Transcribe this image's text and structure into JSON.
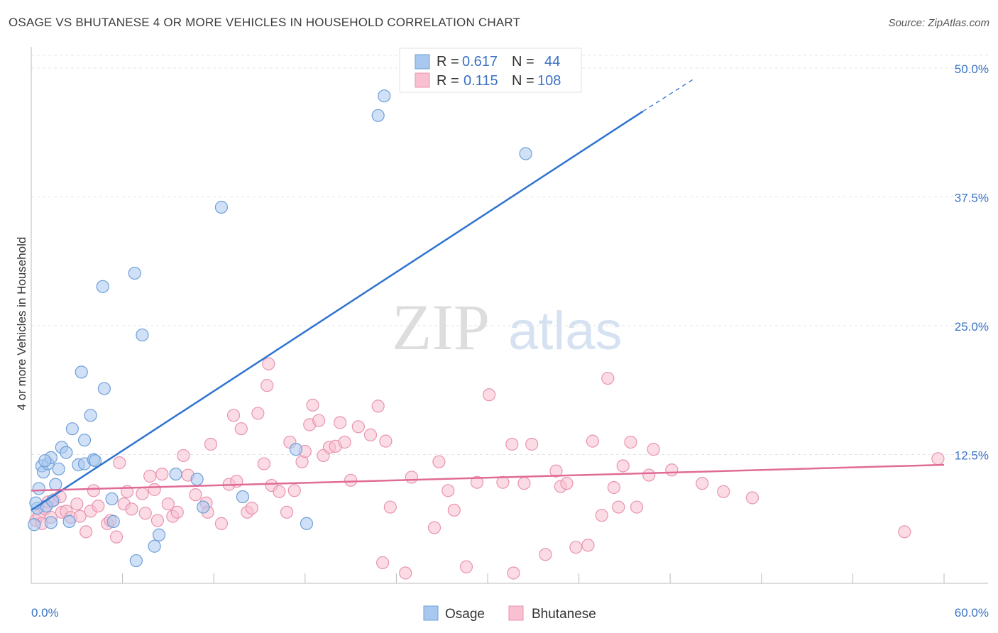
{
  "title": "OSAGE VS BHUTANESE 4 OR MORE VEHICLES IN HOUSEHOLD CORRELATION CHART",
  "source": "Source: ZipAtlas.com",
  "watermark": {
    "zip": "ZIP",
    "atlas": "atlas"
  },
  "legend": {
    "r_label": "R =",
    "n_label": "N =",
    "rows": [
      {
        "name": "Osage",
        "r": "0.617",
        "n": "44",
        "color": "#a9c8f0",
        "stroke": "#6e9fd8"
      },
      {
        "name": "Bhutanese",
        "r": "0.115",
        "n": "108",
        "color": "#f8c0d0",
        "stroke": "#e993b0"
      }
    ]
  },
  "chart_data": {
    "type": "scatter",
    "title": "OSAGE VS BHUTANESE 4 OR MORE VEHICLES IN HOUSEHOLD CORRELATION CHART",
    "xlabel": "",
    "ylabel": "4 or more Vehicles in Household",
    "xlim": [
      0,
      60
    ],
    "ylim": [
      0,
      50
    ],
    "x_tick_labels": [
      "0.0%",
      "60.0%"
    ],
    "y_ticks": [
      12.5,
      25.0,
      37.5,
      50.0
    ],
    "y_tick_labels": [
      "12.5%",
      "25.0%",
      "37.5%",
      "50.0%"
    ],
    "grid": true,
    "legend_position": "top-center",
    "series": [
      {
        "name": "Osage",
        "color": "#a9c8f0",
        "stroke": "#6e9fd8",
        "line_color": "#2f74d0",
        "trend": {
          "x0": 0.0,
          "y0": 7.1,
          "x1": 40.2,
          "y1": 45.8,
          "dash_to_x": 43.5,
          "dash_to_y": 48.9
        },
        "points": [
          [
            0.2,
            5.7
          ],
          [
            0.4,
            7.3
          ],
          [
            0.5,
            9.2
          ],
          [
            0.7,
            11.4
          ],
          [
            0.8,
            10.8
          ],
          [
            1.0,
            7.5
          ],
          [
            1.1,
            11.6
          ],
          [
            1.3,
            12.2
          ],
          [
            1.3,
            5.9
          ],
          [
            1.6,
            9.6
          ],
          [
            1.8,
            11.1
          ],
          [
            2.0,
            13.2
          ],
          [
            2.3,
            12.7
          ],
          [
            2.5,
            6.0
          ],
          [
            2.7,
            15.0
          ],
          [
            3.1,
            11.5
          ],
          [
            3.3,
            20.5
          ],
          [
            3.5,
            13.9
          ],
          [
            3.5,
            11.6
          ],
          [
            3.9,
            16.3
          ],
          [
            4.1,
            12.0
          ],
          [
            4.2,
            11.9
          ],
          [
            4.7,
            28.8
          ],
          [
            4.8,
            18.9
          ],
          [
            5.3,
            8.2
          ],
          [
            5.4,
            6.0
          ],
          [
            6.8,
            30.1
          ],
          [
            6.9,
            2.2
          ],
          [
            7.3,
            24.1
          ],
          [
            8.1,
            3.6
          ],
          [
            8.4,
            4.7
          ],
          [
            9.5,
            10.6
          ],
          [
            10.9,
            10.1
          ],
          [
            11.3,
            7.4
          ],
          [
            12.5,
            36.5
          ],
          [
            13.9,
            8.4
          ],
          [
            17.4,
            13.0
          ],
          [
            18.1,
            5.8
          ],
          [
            22.8,
            45.4
          ],
          [
            23.2,
            47.3
          ],
          [
            32.5,
            41.7
          ],
          [
            1.4,
            8.0
          ],
          [
            0.9,
            11.9
          ],
          [
            0.3,
            7.8
          ]
        ]
      },
      {
        "name": "Bhutanese",
        "color": "#f8c0d0",
        "stroke": "#e993b0",
        "line_color": "#e06b96",
        "trend": {
          "x0": 0.0,
          "y0": 9.0,
          "x1": 60.0,
          "y1": 11.5
        },
        "points": [
          [
            0.3,
            6.1
          ],
          [
            0.5,
            6.6
          ],
          [
            0.7,
            5.8
          ],
          [
            0.9,
            7.2
          ],
          [
            1.1,
            7.9
          ],
          [
            1.3,
            6.4
          ],
          [
            1.5,
            8.1
          ],
          [
            1.9,
            8.4
          ],
          [
            2.0,
            6.9
          ],
          [
            2.3,
            7.0
          ],
          [
            2.6,
            6.4
          ],
          [
            3.0,
            7.7
          ],
          [
            3.2,
            6.5
          ],
          [
            3.6,
            5.0
          ],
          [
            3.9,
            7.0
          ],
          [
            4.1,
            9.0
          ],
          [
            4.4,
            7.5
          ],
          [
            5.0,
            5.8
          ],
          [
            5.2,
            6.1
          ],
          [
            5.6,
            4.5
          ],
          [
            5.8,
            11.7
          ],
          [
            6.1,
            7.7
          ],
          [
            6.3,
            8.9
          ],
          [
            6.6,
            7.2
          ],
          [
            7.3,
            8.7
          ],
          [
            7.5,
            6.8
          ],
          [
            7.8,
            10.4
          ],
          [
            8.1,
            9.1
          ],
          [
            8.3,
            6.1
          ],
          [
            8.6,
            10.6
          ],
          [
            9.0,
            7.7
          ],
          [
            9.3,
            6.5
          ],
          [
            9.6,
            6.9
          ],
          [
            10.0,
            12.4
          ],
          [
            10.3,
            10.5
          ],
          [
            10.8,
            8.6
          ],
          [
            11.5,
            7.8
          ],
          [
            11.6,
            6.9
          ],
          [
            11.8,
            13.5
          ],
          [
            12.5,
            5.8
          ],
          [
            13.0,
            9.6
          ],
          [
            13.3,
            16.3
          ],
          [
            13.5,
            9.9
          ],
          [
            13.8,
            15.0
          ],
          [
            14.2,
            6.9
          ],
          [
            14.5,
            7.3
          ],
          [
            14.9,
            16.5
          ],
          [
            15.3,
            11.6
          ],
          [
            15.5,
            19.2
          ],
          [
            15.6,
            21.3
          ],
          [
            15.8,
            9.5
          ],
          [
            16.3,
            8.9
          ],
          [
            16.8,
            6.9
          ],
          [
            17.0,
            13.7
          ],
          [
            17.3,
            9.0
          ],
          [
            17.8,
            11.8
          ],
          [
            18.0,
            12.8
          ],
          [
            18.3,
            15.4
          ],
          [
            18.5,
            17.3
          ],
          [
            18.9,
            15.8
          ],
          [
            19.2,
            12.4
          ],
          [
            19.6,
            13.2
          ],
          [
            20.0,
            13.3
          ],
          [
            20.3,
            15.6
          ],
          [
            20.6,
            13.7
          ],
          [
            21.0,
            10.0
          ],
          [
            21.5,
            15.2
          ],
          [
            22.3,
            14.4
          ],
          [
            22.8,
            17.2
          ],
          [
            23.1,
            2.0
          ],
          [
            23.3,
            13.8
          ],
          [
            23.6,
            7.4
          ],
          [
            24.6,
            1.0
          ],
          [
            25.0,
            10.3
          ],
          [
            26.5,
            5.4
          ],
          [
            26.8,
            11.8
          ],
          [
            27.4,
            9.0
          ],
          [
            27.8,
            7.1
          ],
          [
            28.6,
            1.6
          ],
          [
            29.3,
            9.8
          ],
          [
            30.1,
            18.3
          ],
          [
            31.0,
            9.8
          ],
          [
            31.6,
            13.5
          ],
          [
            31.7,
            1.0
          ],
          [
            32.4,
            9.7
          ],
          [
            32.9,
            13.5
          ],
          [
            33.8,
            2.8
          ],
          [
            34.5,
            10.9
          ],
          [
            34.8,
            9.4
          ],
          [
            35.2,
            9.7
          ],
          [
            35.8,
            3.5
          ],
          [
            36.6,
            3.7
          ],
          [
            36.9,
            13.8
          ],
          [
            37.5,
            6.6
          ],
          [
            37.9,
            19.9
          ],
          [
            38.3,
            9.3
          ],
          [
            38.6,
            7.4
          ],
          [
            38.9,
            11.4
          ],
          [
            39.4,
            13.7
          ],
          [
            39.8,
            7.4
          ],
          [
            40.6,
            10.5
          ],
          [
            40.9,
            13.0
          ],
          [
            42.1,
            11.0
          ],
          [
            44.1,
            9.7
          ],
          [
            45.5,
            8.9
          ],
          [
            47.4,
            8.3
          ],
          [
            57.4,
            5.0
          ],
          [
            59.6,
            12.1
          ]
        ]
      }
    ]
  }
}
